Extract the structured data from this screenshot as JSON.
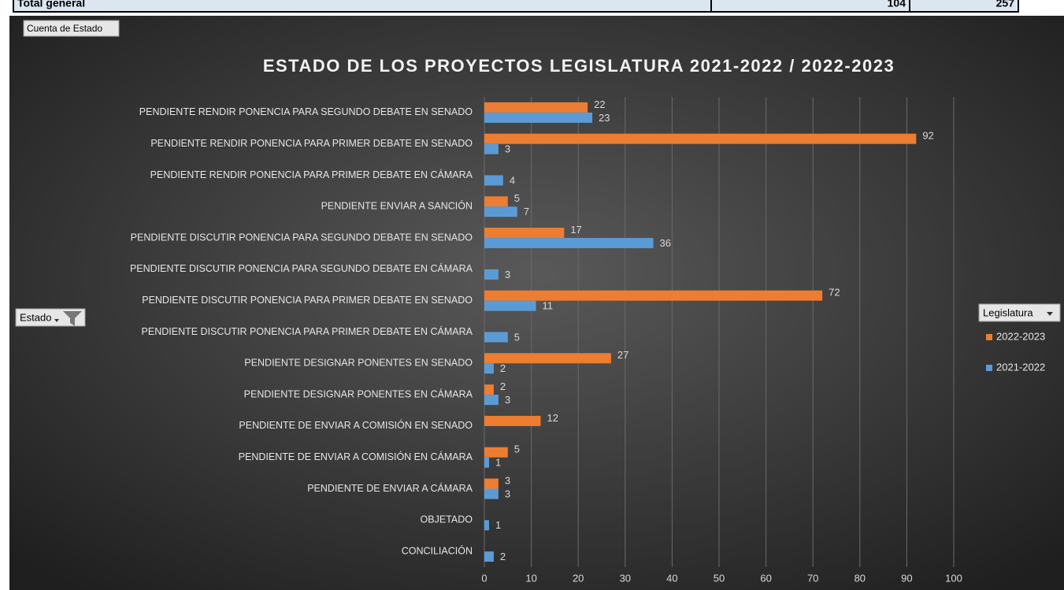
{
  "table_strip": {
    "label": "Total general",
    "values": [
      104,
      257
    ]
  },
  "buttons": {
    "value_field": "Cuenta de Estado",
    "row_field": "Estado",
    "legend_field": "Legislatura"
  },
  "chart_data": {
    "type": "bar",
    "orientation": "horizontal",
    "title": "ESTADO  DE LOS PROYECTOS  LEGISLATURA  2021-2022 / 2022-2023",
    "categories": [
      "PENDIENTE RENDIR PONENCIA PARA SEGUNDO DEBATE EN SENADO",
      "PENDIENTE RENDIR PONENCIA PARA PRIMER DEBATE EN SENADO",
      "PENDIENTE RENDIR PONENCIA PARA PRIMER DEBATE EN CÁMARA",
      "PENDIENTE ENVIAR A SANCIÓN",
      "PENDIENTE DISCUTIR PONENCIA PARA SEGUNDO DEBATE EN SENADO",
      "PENDIENTE DISCUTIR PONENCIA PARA SEGUNDO DEBATE EN CÁMARA",
      "PENDIENTE DISCUTIR PONENCIA PARA PRIMER DEBATE EN SENADO",
      "PENDIENTE DISCUTIR PONENCIA PARA PRIMER DEBATE EN CÁMARA",
      "PENDIENTE DESIGNAR PONENTES EN SENADO",
      "PENDIENTE DESIGNAR PONENTES EN CÁMARA",
      "PENDIENTE DE ENVIAR A COMISIÓN EN SENADO",
      "PENDIENTE DE ENVIAR A COMISIÓN EN CÁMARA",
      "PENDIENTE DE ENVIAR A CÁMARA",
      "OBJETADO",
      "CONCILIACIÓN"
    ],
    "series": [
      {
        "name": "2022-2023",
        "color": "#ed7d31",
        "values": [
          22,
          92,
          null,
          5,
          17,
          null,
          72,
          null,
          27,
          2,
          12,
          5,
          3,
          null,
          null
        ]
      },
      {
        "name": "2021-2022",
        "color": "#5b9bd5",
        "values": [
          23,
          3,
          4,
          7,
          36,
          3,
          11,
          5,
          2,
          3,
          null,
          1,
          3,
          1,
          2
        ]
      }
    ],
    "xlim": [
      0,
      100
    ],
    "xticks": [
      0,
      10,
      20,
      30,
      40,
      50,
      60,
      70,
      80,
      90,
      100
    ],
    "grid": true,
    "legend": "right"
  }
}
